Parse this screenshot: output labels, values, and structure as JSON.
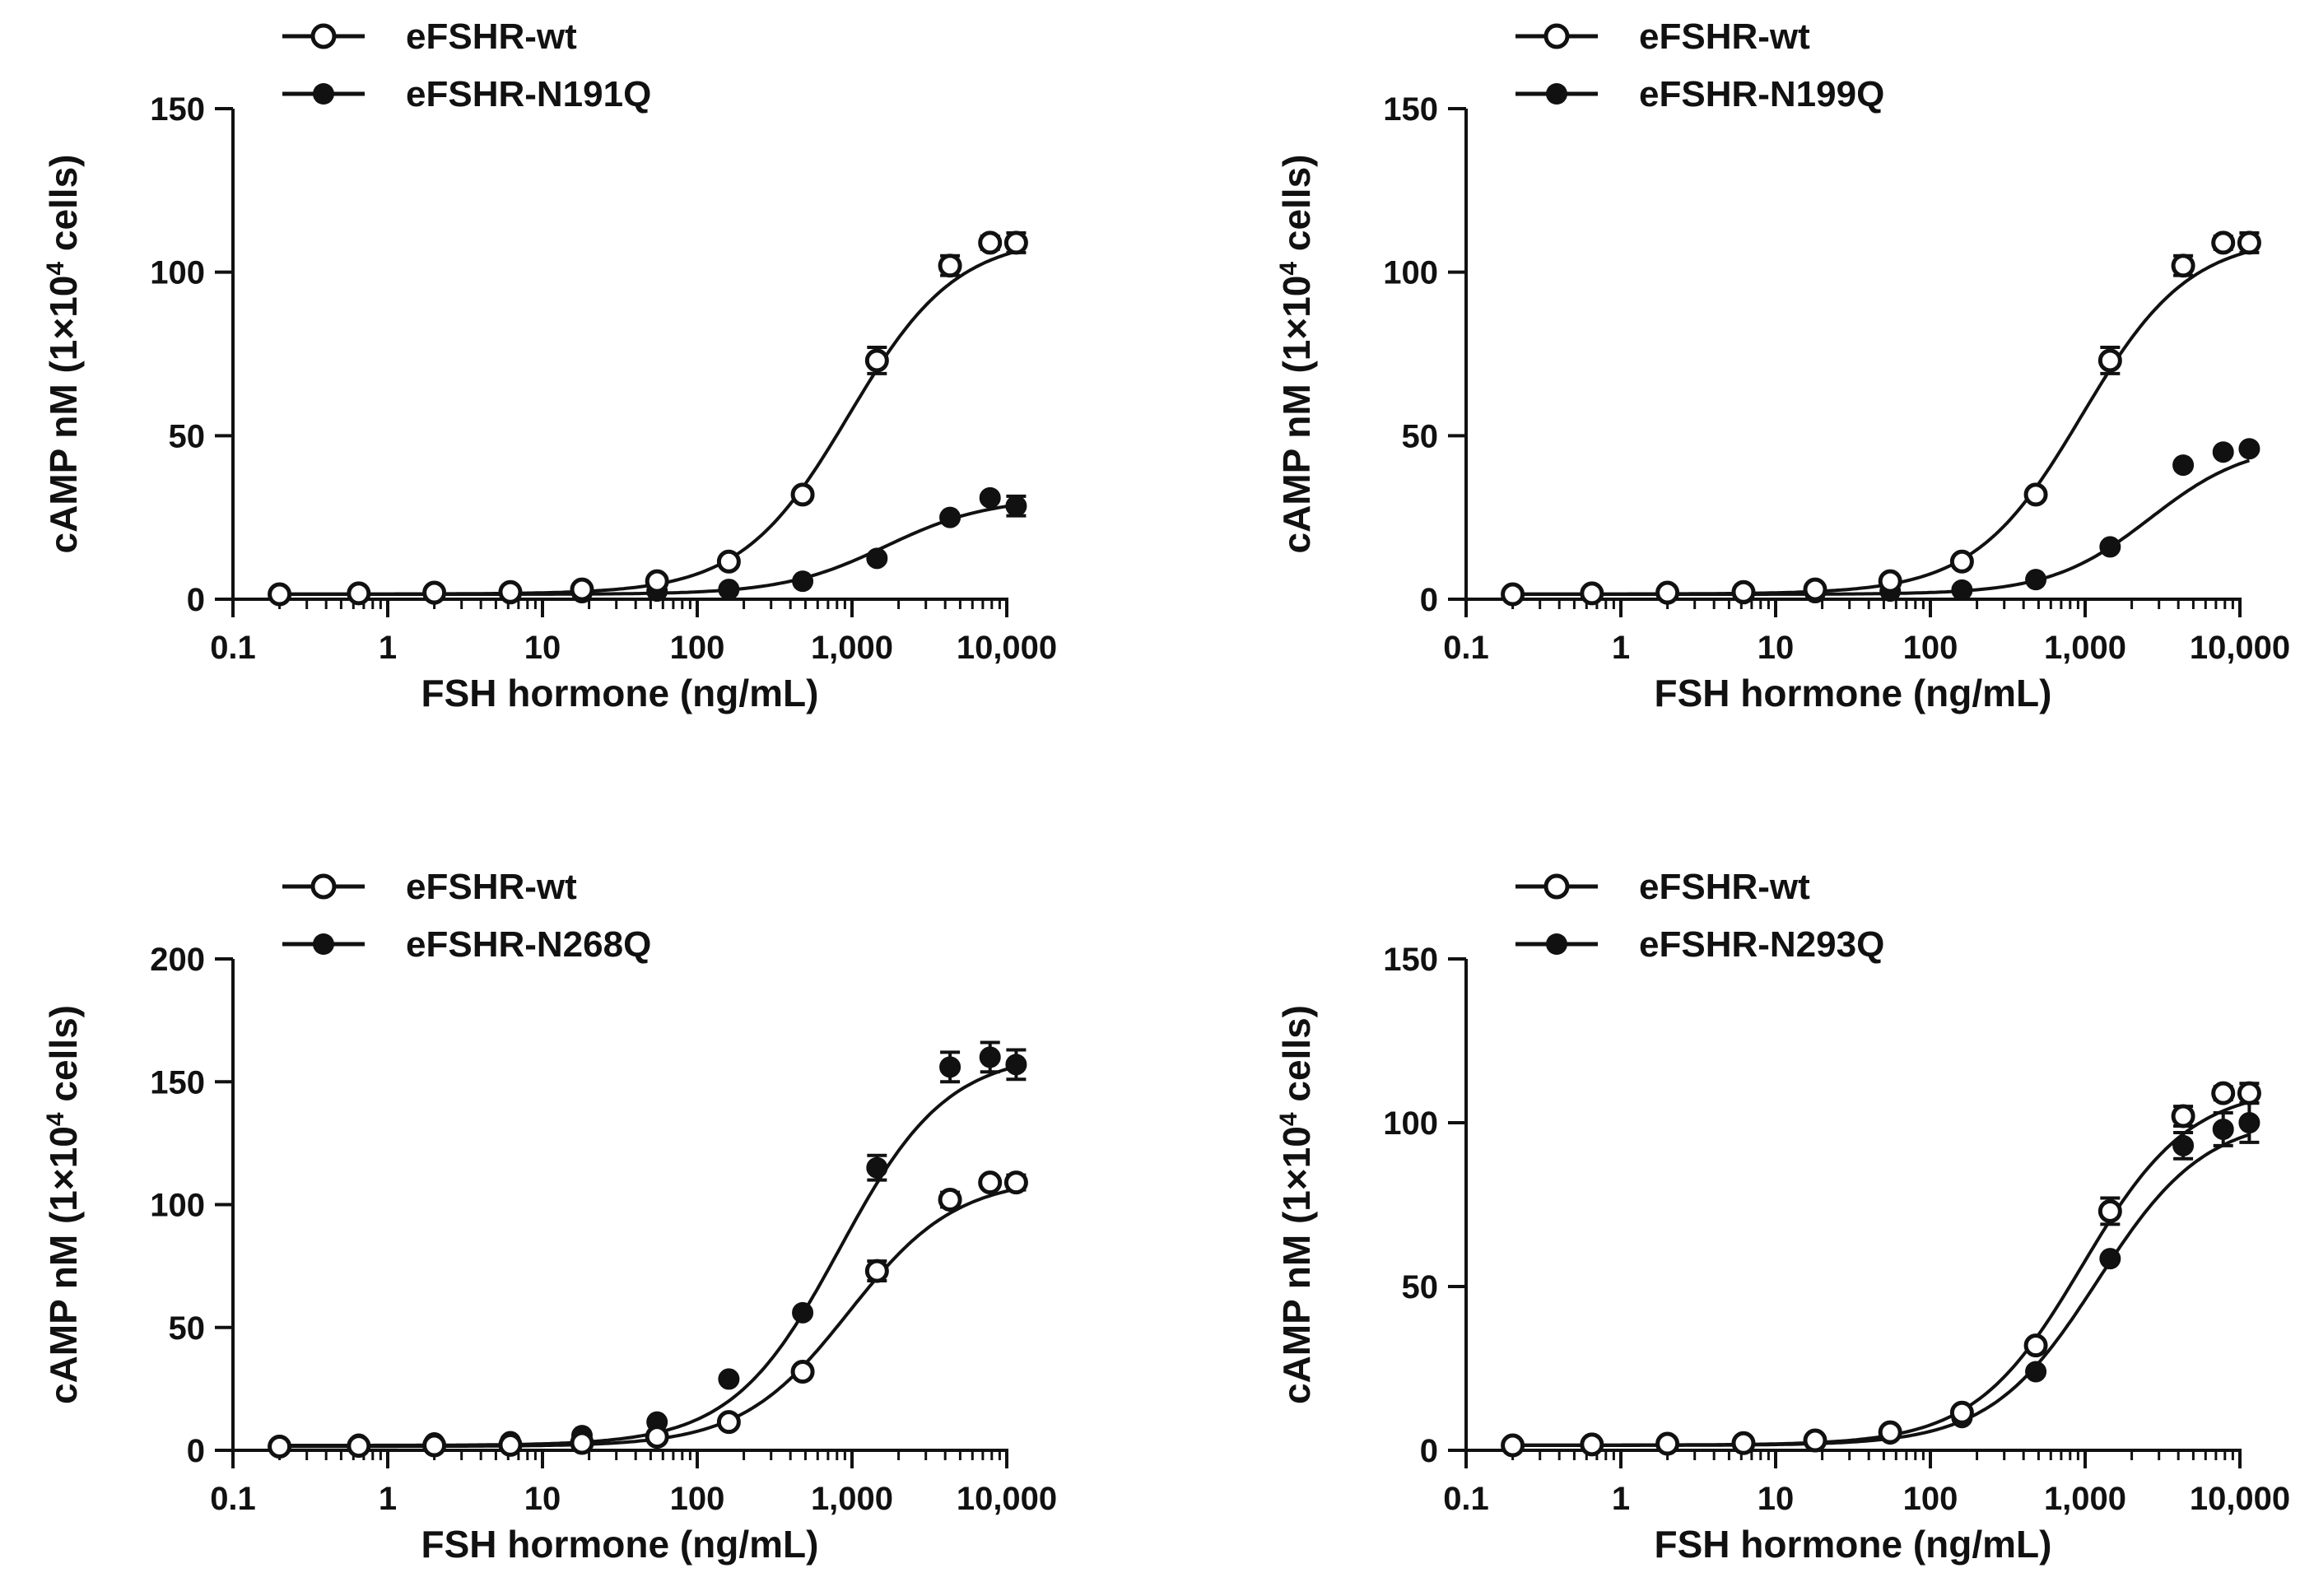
{
  "chart_data": [
    {
      "type": "line",
      "xscale": "log",
      "xlabel": "FSH hormone (ng/mL)",
      "ylabel_main": "cAMP nM (1×10",
      "ylabel_sup": "4",
      "ylabel_tail": " cells)",
      "xticks": [
        0.1,
        1,
        10,
        100,
        1000,
        10000
      ],
      "xtick_labels": [
        "0.1",
        "1",
        "10",
        "100",
        "1,000",
        "10,000"
      ],
      "yticks": [
        0,
        50,
        100,
        150
      ],
      "ytick_labels": [
        "0",
        "50",
        "100",
        "150"
      ],
      "xlim": [
        0.1,
        10000
      ],
      "ylim": [
        0,
        150
      ],
      "legend_position": "top-left",
      "x": [
        0.2,
        0.65,
        2,
        6.2,
        18,
        55,
        160,
        480,
        1450,
        4300,
        7800,
        11500
      ],
      "series": [
        {
          "name": "eFSHR-wt",
          "marker": "open-circle",
          "values": [
            1.5,
            1.8,
            2.0,
            2.2,
            3.0,
            5.5,
            11.5,
            32,
            73,
            102,
            109,
            109
          ],
          "errors": [
            0,
            0,
            0,
            0,
            0,
            0,
            0,
            0,
            4,
            3,
            2,
            3
          ],
          "fit": {
            "bottom": 1.6,
            "top": 111,
            "logec50": 2.98,
            "hill": 1.25
          }
        },
        {
          "name": "eFSHR-N191Q",
          "marker": "filled-circle",
          "values": [
            1.4,
            1.5,
            1.6,
            1.7,
            2.0,
            2.5,
            3.0,
            5.5,
            12.5,
            25,
            31,
            28.5
          ],
          "errors": [
            0,
            0,
            0,
            0,
            0,
            0,
            0,
            0,
            0,
            0,
            0,
            3
          ],
          "fit": {
            "bottom": 1.5,
            "top": 31,
            "logec50": 3.22,
            "hill": 1.3
          }
        }
      ]
    },
    {
      "type": "line",
      "xscale": "log",
      "xlabel": "FSH hormone (ng/mL)",
      "ylabel_main": "cAMP nM (1×10",
      "ylabel_sup": "4",
      "ylabel_tail": " cells)",
      "xticks": [
        0.1,
        1,
        10,
        100,
        1000,
        10000
      ],
      "xtick_labels": [
        "0.1",
        "1",
        "10",
        "100",
        "1,000",
        "10,000"
      ],
      "yticks": [
        0,
        50,
        100,
        150
      ],
      "ytick_labels": [
        "0",
        "50",
        "100",
        "150"
      ],
      "xlim": [
        0.1,
        10000
      ],
      "ylim": [
        0,
        150
      ],
      "legend_position": "top-left",
      "x": [
        0.2,
        0.65,
        2,
        6.2,
        18,
        55,
        160,
        480,
        1450,
        4300,
        7800,
        11500
      ],
      "series": [
        {
          "name": "eFSHR-wt",
          "marker": "open-circle",
          "values": [
            1.5,
            1.8,
            2.0,
            2.2,
            3.0,
            5.5,
            11.5,
            32,
            73,
            102,
            109,
            109
          ],
          "errors": [
            0,
            0,
            0,
            0,
            0,
            0,
            0,
            0,
            4,
            3,
            2,
            3
          ],
          "fit": {
            "bottom": 1.6,
            "top": 111,
            "logec50": 2.98,
            "hill": 1.25
          }
        },
        {
          "name": "eFSHR-N199Q",
          "marker": "filled-circle",
          "values": [
            1.4,
            1.5,
            1.6,
            1.7,
            2.0,
            2.5,
            2.8,
            6.0,
            16,
            41,
            45,
            46
          ],
          "errors": [
            0,
            0,
            0,
            0,
            0,
            0,
            0,
            0,
            0,
            0,
            0,
            0
          ],
          "fit": {
            "bottom": 1.5,
            "top": 48,
            "logec50": 3.42,
            "hill": 1.35
          }
        }
      ]
    },
    {
      "type": "line",
      "xscale": "log",
      "xlabel": "FSH hormone (ng/mL)",
      "ylabel_main": "cAMP nM (1×10",
      "ylabel_sup": "4",
      "ylabel_tail": " cells)",
      "xticks": [
        0.1,
        1,
        10,
        100,
        1000,
        10000
      ],
      "xtick_labels": [
        "0.1",
        "1",
        "10",
        "100",
        "1,000",
        "10,000"
      ],
      "yticks": [
        0,
        50,
        100,
        150,
        200
      ],
      "ytick_labels": [
        "0",
        "50",
        "100",
        "150",
        "200"
      ],
      "xlim": [
        0.1,
        10000
      ],
      "ylim": [
        0,
        200
      ],
      "legend_position": "top-left",
      "x": [
        0.2,
        0.65,
        2,
        6.2,
        18,
        55,
        160,
        480,
        1450,
        4300,
        7800,
        11500
      ],
      "series": [
        {
          "name": "eFSHR-wt",
          "marker": "open-circle",
          "values": [
            1.5,
            1.8,
            2.0,
            2.2,
            3.0,
            5.5,
            11.5,
            32,
            73,
            102,
            109,
            109
          ],
          "errors": [
            0,
            0,
            0,
            0,
            0,
            0,
            0,
            0,
            4,
            3,
            2,
            3
          ],
          "fit": {
            "bottom": 1.6,
            "top": 111,
            "logec50": 2.98,
            "hill": 1.25
          }
        },
        {
          "name": "eFSHR-N268Q",
          "marker": "filled-circle",
          "values": [
            2.0,
            2.5,
            3.0,
            3.5,
            6.0,
            11.5,
            29,
            56,
            115,
            156,
            160,
            157
          ],
          "errors": [
            0,
            0,
            0,
            0,
            0,
            0,
            0,
            0,
            5,
            6,
            6,
            6
          ],
          "fit": {
            "bottom": 2.0,
            "top": 162,
            "logec50": 2.92,
            "hill": 1.25
          }
        }
      ]
    },
    {
      "type": "line",
      "xscale": "log",
      "xlabel": "FSH hormone (ng/mL)",
      "ylabel_main": "cAMP nM (1×10",
      "ylabel_sup": "4",
      "ylabel_tail": " cells)",
      "xticks": [
        0.1,
        1,
        10,
        100,
        1000,
        10000
      ],
      "xtick_labels": [
        "0.1",
        "1",
        "10",
        "100",
        "1,000",
        "10,000"
      ],
      "yticks": [
        0,
        50,
        100,
        150
      ],
      "ytick_labels": [
        "0",
        "50",
        "100",
        "150"
      ],
      "xlim": [
        0.1,
        10000
      ],
      "ylim": [
        0,
        150
      ],
      "legend_position": "top-left",
      "x": [
        0.2,
        0.65,
        2,
        6.2,
        18,
        55,
        160,
        480,
        1450,
        4300,
        7800,
        11500
      ],
      "series": [
        {
          "name": "eFSHR-wt",
          "marker": "open-circle",
          "values": [
            1.5,
            1.8,
            2.0,
            2.2,
            3.0,
            5.5,
            11.5,
            32,
            73,
            102,
            109,
            109
          ],
          "errors": [
            0,
            0,
            0,
            0,
            0,
            0,
            0,
            0,
            4,
            3,
            2,
            3
          ],
          "fit": {
            "bottom": 1.6,
            "top": 111,
            "logec50": 2.98,
            "hill": 1.25
          }
        },
        {
          "name": "eFSHR-N293Q",
          "marker": "filled-circle",
          "values": [
            1.4,
            1.6,
            1.9,
            2.1,
            2.8,
            5.0,
            10,
            24,
            58.5,
            93,
            98,
            100
          ],
          "errors": [
            0,
            0,
            0,
            0,
            0,
            0,
            0,
            0,
            0,
            4,
            5,
            6
          ],
          "fit": {
            "bottom": 1.5,
            "top": 102,
            "logec50": 3.08,
            "hill": 1.25
          }
        }
      ]
    }
  ]
}
